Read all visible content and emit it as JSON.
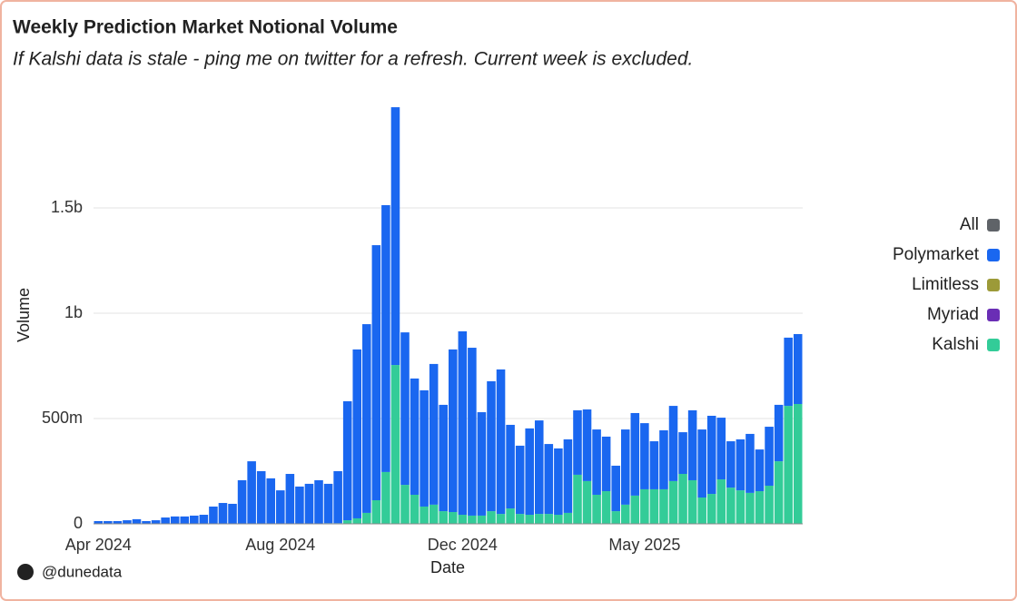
{
  "chart_data": {
    "type": "stacked_bar",
    "title": "Weekly Prediction Market Notional Volume",
    "subtitle": "If Kalshi data is stale - ping me on twitter for a refresh. Current week is excluded.",
    "x_label": "Date",
    "y_label": "Volume",
    "watermark": "@dunedata",
    "categories": [
      "Apr 2024",
      null,
      null,
      null,
      null,
      null,
      null,
      null,
      null,
      null,
      null,
      null,
      null,
      null,
      null,
      null,
      null,
      null,
      null,
      "Aug 2024",
      null,
      null,
      null,
      null,
      null,
      null,
      null,
      null,
      null,
      null,
      null,
      null,
      null,
      null,
      null,
      null,
      null,
      null,
      "Dec 2024",
      null,
      null,
      null,
      null,
      null,
      null,
      null,
      null,
      null,
      null,
      null,
      null,
      null,
      null,
      null,
      null,
      null,
      null,
      "May 2025",
      null,
      null,
      null,
      null,
      null,
      null,
      null,
      null,
      null,
      null,
      null,
      null,
      null,
      null,
      null,
      null
    ],
    "series": [
      {
        "name": "All",
        "color": "#5f6368",
        "values": [
          null,
          null,
          null,
          null,
          null,
          null,
          null,
          null,
          null,
          null,
          null,
          null,
          null,
          null,
          null,
          null,
          null,
          null,
          null,
          null,
          null,
          null,
          null,
          null,
          null,
          null,
          null,
          null,
          null,
          null,
          null,
          null,
          null,
          null,
          null,
          null,
          null,
          null,
          null,
          null,
          null,
          null,
          null,
          null,
          null,
          null,
          null,
          null,
          null,
          null,
          null,
          null,
          null,
          null,
          null,
          null,
          null,
          null,
          null,
          null,
          null,
          null,
          null,
          null,
          null,
          null,
          null,
          null,
          null,
          null,
          null,
          null,
          null,
          null
        ]
      },
      {
        "name": "Polymarket",
        "color": "#1a67f0",
        "values": [
          13,
          13,
          13,
          17,
          22,
          13,
          17,
          30,
          35,
          35,
          39,
          43,
          82,
          99,
          94,
          206,
          296,
          249,
          215,
          158,
          236,
          176,
          189,
          206,
          187,
          247,
          565,
          802,
          896,
          1211,
          1267,
          1224,
          724,
          552,
          552,
          668,
          505,
          772,
          871,
          797,
          491,
          617,
          686,
          397,
          324,
          410,
          444,
          332,
          315,
          349,
          306,
          340,
          310,
          259,
          216,
          357,
          392,
          314,
          228,
          280,
          357,
          198,
          332,
          323,
          371,
          293,
          220,
          242,
          280,
          198,
          280,
          268,
          324,
          332
        ]
      },
      {
        "name": "Limitless",
        "color": "#9c9a38",
        "values": [
          null,
          null,
          null,
          null,
          null,
          null,
          null,
          null,
          null,
          null,
          null,
          null,
          null,
          null,
          null,
          null,
          null,
          null,
          null,
          null,
          null,
          null,
          null,
          null,
          null,
          null,
          null,
          null,
          null,
          null,
          null,
          null,
          null,
          null,
          null,
          null,
          null,
          null,
          null,
          null,
          null,
          null,
          null,
          null,
          null,
          null,
          null,
          null,
          null,
          null,
          null,
          null,
          null,
          null,
          null,
          null,
          null,
          null,
          null,
          null,
          null,
          null,
          null,
          null,
          null,
          null,
          null,
          null,
          null,
          null,
          null,
          null,
          null,
          null
        ]
      },
      {
        "name": "Myriad",
        "color": "#6a2eb5",
        "values": [
          null,
          null,
          null,
          null,
          null,
          null,
          null,
          null,
          null,
          null,
          null,
          null,
          null,
          null,
          null,
          null,
          null,
          null,
          null,
          null,
          null,
          null,
          null,
          null,
          null,
          null,
          null,
          null,
          null,
          null,
          null,
          null,
          null,
          null,
          null,
          null,
          null,
          null,
          null,
          null,
          null,
          null,
          null,
          null,
          null,
          null,
          null,
          null,
          null,
          null,
          null,
          null,
          null,
          null,
          null,
          null,
          null,
          null,
          null,
          null,
          null,
          null,
          null,
          null,
          null,
          null,
          null,
          null,
          null,
          null,
          null,
          null,
          null,
          null
        ]
      },
      {
        "name": "Kalshi",
        "color": "#33cc98",
        "values": [
          0,
          0,
          0,
          0,
          0,
          0,
          0,
          0,
          0,
          0,
          0,
          0,
          0,
          0,
          1,
          1,
          1,
          1,
          1,
          1,
          1,
          1,
          1,
          1,
          3,
          3,
          17,
          26,
          52,
          112,
          246,
          754,
          185,
          138,
          82,
          91,
          60,
          56,
          43,
          39,
          39,
          60,
          47,
          73,
          47,
          43,
          47,
          47,
          43,
          52,
          233,
          203,
          138,
          155,
          60,
          91,
          134,
          164,
          164,
          164,
          203,
          237,
          207,
          125,
          142,
          211,
          172,
          159,
          147,
          155,
          181,
          297,
          560,
          569
        ]
      }
    ],
    "ylim": [
      0,
      2000
    ],
    "yticks": [
      0,
      {
        "value": 500,
        "label": "500m"
      },
      {
        "value": 1000,
        "label": "1b"
      },
      {
        "value": 1500,
        "label": "1.5b"
      }
    ],
    "grid": true,
    "legend": "right"
  }
}
